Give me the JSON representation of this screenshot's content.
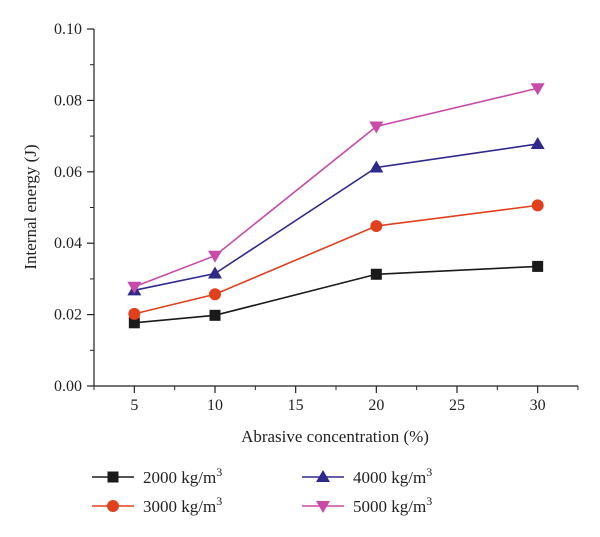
{
  "chart_data": {
    "type": "line",
    "xlabel": "Abrasive concentration (%)",
    "ylabel": "Internal energy (J)",
    "xlim": [
      2.5,
      32.5
    ],
    "ylim": [
      0.0,
      0.1
    ],
    "xticks": [
      5,
      10,
      15,
      20,
      25,
      30
    ],
    "xtick_labels": [
      "5",
      "10",
      "15",
      "20",
      "25",
      "30"
    ],
    "yticks": [
      0.0,
      0.02,
      0.04,
      0.06,
      0.08,
      0.1
    ],
    "ytick_labels": [
      "0.00",
      "0.02",
      "0.04",
      "0.06",
      "0.08",
      "0.10"
    ],
    "grid": false,
    "legend_position": "bottom",
    "x": [
      5,
      10,
      20,
      30
    ],
    "series": [
      {
        "name": "2000 kg/m",
        "sup": "3",
        "values": [
          0.0177,
          0.0198,
          0.0313,
          0.0335
        ],
        "color": "#1a1a1a",
        "marker": "square"
      },
      {
        "name": "3000 kg/m",
        "sup": "3",
        "values": [
          0.0202,
          0.0257,
          0.0448,
          0.0506
        ],
        "color": "#e0401c",
        "marker": "circle"
      },
      {
        "name": "4000 kg/m",
        "sup": "3",
        "values": [
          0.0268,
          0.0315,
          0.0612,
          0.0678
        ],
        "color": "#2e2a8c",
        "marker": "triangle-up"
      },
      {
        "name": "5000 kg/m",
        "sup": "3",
        "values": [
          0.0278,
          0.0365,
          0.0727,
          0.0834
        ],
        "color": "#c94aa8",
        "marker": "triangle-down"
      }
    ]
  }
}
